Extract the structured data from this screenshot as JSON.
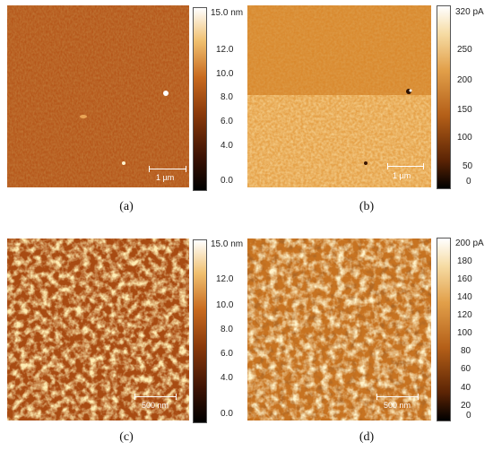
{
  "panels": [
    {
      "id": "a",
      "caption": "(a)",
      "scale_bar": "1 µm",
      "colorbar_top": "15.0 nm",
      "ticks": [
        "12.0",
        "10.0",
        "8.0",
        "6.0",
        "4.0",
        "0.0"
      ],
      "palette": [
        "#3b1204",
        "#8b3a0b",
        "#c86a1f",
        "#f0c070",
        "#fff2c8"
      ]
    },
    {
      "id": "b",
      "caption": "(b)",
      "scale_bar": "1 µm",
      "colorbar_top": "320 pA",
      "ticks": [
        "250",
        "200",
        "150",
        "100",
        "50",
        "0"
      ],
      "palette": [
        "#1a0700",
        "#7a3508",
        "#c8741e",
        "#f0c070",
        "#fffaf0"
      ]
    },
    {
      "id": "c",
      "caption": "(c)",
      "scale_bar": "500 nm",
      "colorbar_top": "15.0 nm",
      "ticks": [
        "12.0",
        "10.0",
        "8.0",
        "6.0",
        "4.0",
        "0.0"
      ],
      "palette": [
        "#3b1204",
        "#8b3a0b",
        "#c86a1f",
        "#f0c070",
        "#fff2c8"
      ]
    },
    {
      "id": "d",
      "caption": "(d)",
      "scale_bar": "500 nm",
      "colorbar_top": "200 pA",
      "ticks": [
        "180",
        "160",
        "140",
        "120",
        "100",
        "80",
        "60",
        "40",
        "20",
        "0"
      ],
      "palette": [
        "#1a0700",
        "#7a3508",
        "#c8741e",
        "#f0c070",
        "#fffaf0"
      ]
    }
  ]
}
